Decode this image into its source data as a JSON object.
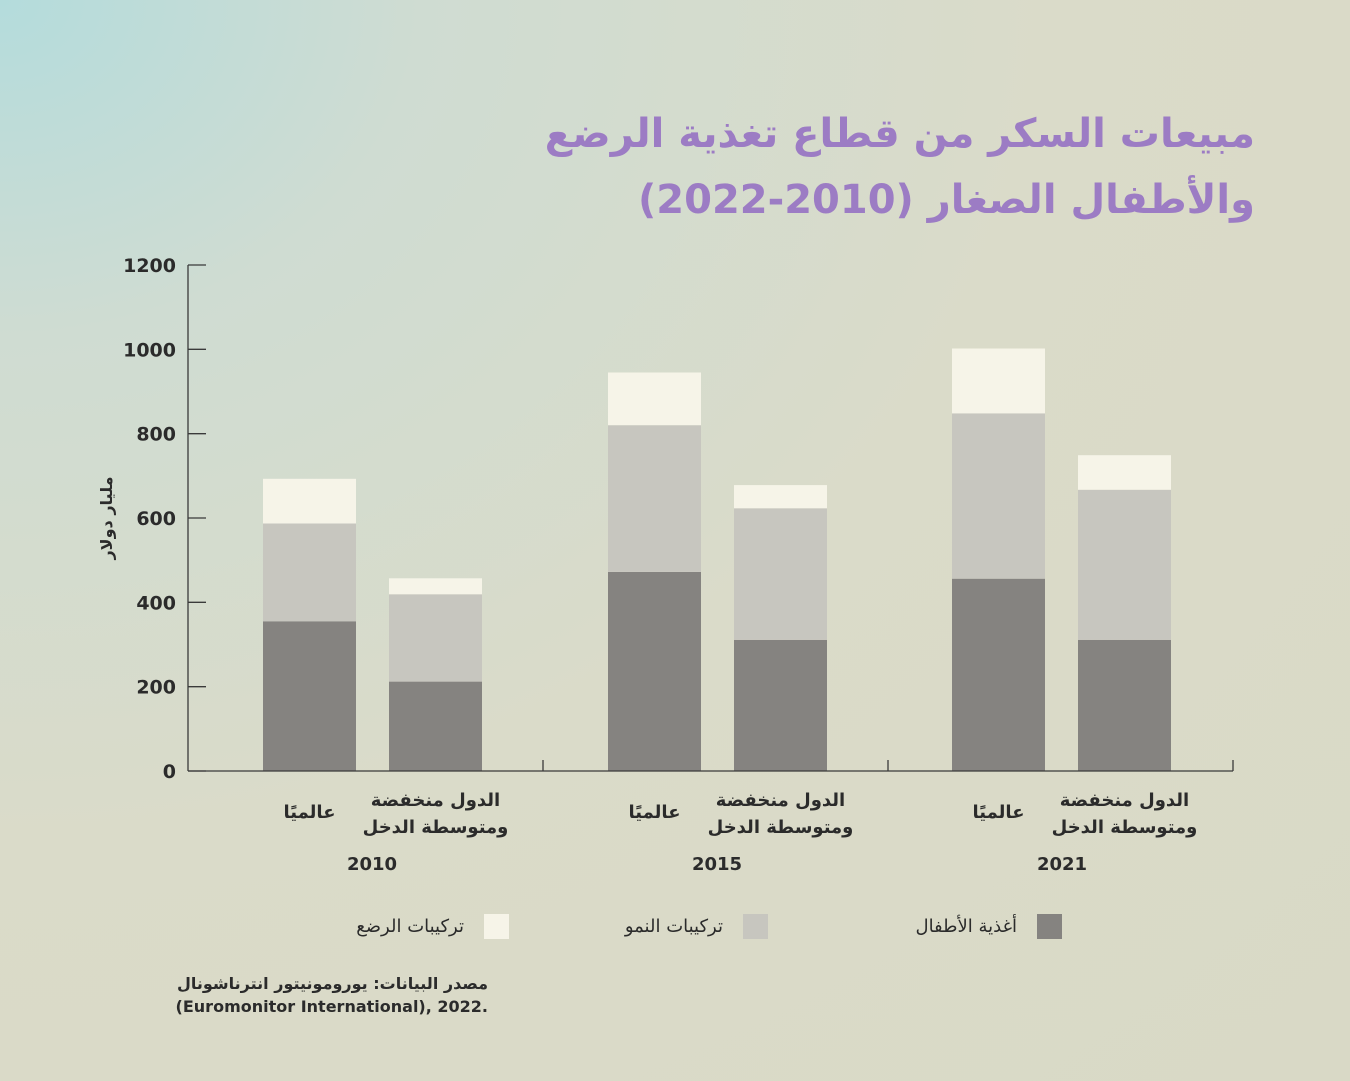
{
  "title": {
    "line1": "مبيعات السكر من قطاع تغذية الرضع",
    "line2": "والأطفال الصغار (2010-2022)"
  },
  "colors": {
    "baby_food": "#858380",
    "growing_up_formula": "#c7c6bf",
    "infant_formula": "#f6f4e8",
    "title": "#9c7cc4",
    "text": "#2b2b2b"
  },
  "chart_data": {
    "type": "bar",
    "stacked": true,
    "ylabel": "مليار دولار",
    "ylim": [
      0,
      1200
    ],
    "yticks": [
      "0",
      "200",
      "400",
      "600",
      "800",
      "1000",
      "1200"
    ],
    "groups": [
      "2010",
      "2015",
      "2021"
    ],
    "categories": [
      {
        "group": "2010",
        "label_line1": "عالميًا",
        "label_line2": ""
      },
      {
        "group": "2010",
        "label_line1": "الدول منخفضة",
        "label_line2": "ومتوسطة الدخل"
      },
      {
        "group": "2015",
        "label_line1": "عالميًا",
        "label_line2": ""
      },
      {
        "group": "2015",
        "label_line1": "الدول منخفضة",
        "label_line2": "ومتوسطة الدخل"
      },
      {
        "group": "2021",
        "label_line1": "عالميًا",
        "label_line2": ""
      },
      {
        "group": "2021",
        "label_line1": "الدول منخفضة",
        "label_line2": "ومتوسطة الدخل"
      }
    ],
    "series": [
      {
        "name": "أغذية الأطفال",
        "color": "#858380",
        "values": [
          355,
          212,
          472,
          311,
          456,
          311
        ]
      },
      {
        "name": "تركيبات النمو",
        "color": "#c7c6bf",
        "values": [
          232,
          207,
          348,
          312,
          392,
          356
        ]
      },
      {
        "name": "تركيبات الرضع",
        "color": "#f6f4e8",
        "values": [
          106,
          38,
          125,
          55,
          154,
          82
        ]
      }
    ],
    "legend_position": "bottom"
  },
  "source": {
    "line1": "مصدر البيانات: يورومونيتور انترناشونال",
    "line2": "(Euromonitor International), 2022."
  }
}
